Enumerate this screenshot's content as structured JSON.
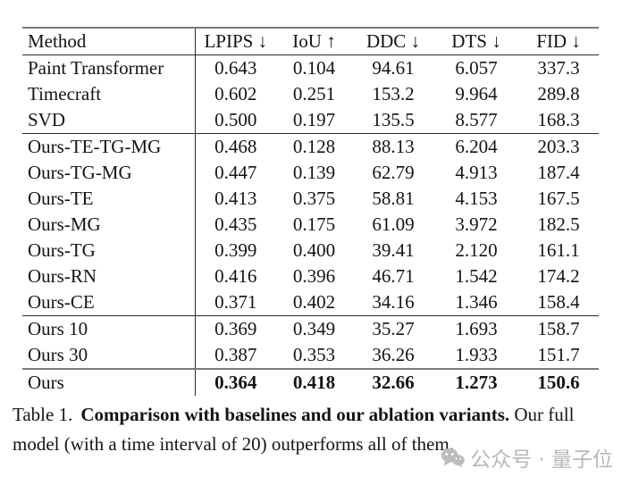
{
  "table": {
    "columns": [
      {
        "label": "Method",
        "arrow": ""
      },
      {
        "label": "LPIPS",
        "arrow": "↓"
      },
      {
        "label": "IoU",
        "arrow": "↑"
      },
      {
        "label": "DDC",
        "arrow": "↓"
      },
      {
        "label": "DTS",
        "arrow": "↓"
      },
      {
        "label": "FID",
        "arrow": "↓"
      }
    ],
    "groups": [
      {
        "name": "baselines",
        "rule": "none",
        "rows": [
          {
            "method": "Paint Transformer",
            "values": [
              "0.643",
              "0.104",
              "94.61",
              "6.057",
              "337.3"
            ],
            "bold": false
          },
          {
            "method": "Timecraft",
            "values": [
              "0.602",
              "0.251",
              "153.2",
              "9.964",
              "289.8"
            ],
            "bold": false
          },
          {
            "method": "SVD",
            "values": [
              "0.500",
              "0.197",
              "135.5",
              "8.577",
              "168.3"
            ],
            "bold": false
          }
        ]
      },
      {
        "name": "ablations",
        "rule": "thin",
        "rows": [
          {
            "method": "Ours-TE-TG-MG",
            "values": [
              "0.468",
              "0.128",
              "88.13",
              "6.204",
              "203.3"
            ],
            "bold": false
          },
          {
            "method": "Ours-TG-MG",
            "values": [
              "0.447",
              "0.139",
              "62.79",
              "4.913",
              "187.4"
            ],
            "bold": false
          },
          {
            "method": "Ours-TE",
            "values": [
              "0.413",
              "0.375",
              "58.81",
              "4.153",
              "167.5"
            ],
            "bold": false
          },
          {
            "method": "Ours-MG",
            "values": [
              "0.435",
              "0.175",
              "61.09",
              "3.972",
              "182.5"
            ],
            "bold": false
          },
          {
            "method": "Ours-TG",
            "values": [
              "0.399",
              "0.400",
              "39.41",
              "2.120",
              "161.1"
            ],
            "bold": false
          },
          {
            "method": "Ours-RN",
            "values": [
              "0.416",
              "0.396",
              "46.71",
              "1.542",
              "174.2"
            ],
            "bold": false
          },
          {
            "method": "Ours-CE",
            "values": [
              "0.371",
              "0.402",
              "34.16",
              "1.346",
              "158.4"
            ],
            "bold": false
          }
        ]
      },
      {
        "name": "time-intervals",
        "rule": "thin",
        "rows": [
          {
            "method": "Ours 10",
            "values": [
              "0.369",
              "0.349",
              "35.27",
              "1.693",
              "158.7"
            ],
            "bold": false
          },
          {
            "method": "Ours 30",
            "values": [
              "0.387",
              "0.353",
              "36.26",
              "1.933",
              "151.7"
            ],
            "bold": false
          }
        ]
      },
      {
        "name": "full-model",
        "rule": "thick",
        "rows": [
          {
            "method": "Ours",
            "values": [
              "0.364",
              "0.418",
              "32.66",
              "1.273",
              "150.6"
            ],
            "bold": true
          }
        ]
      }
    ]
  },
  "caption": {
    "label": "Table 1.",
    "bold": "Comparison with baselines and our ablation variants.",
    "rest": " Our full model (with a time interval of 20) outperforms all of them."
  },
  "watermark": {
    "icon": "wechat-icon",
    "text": "公众号 · 量子位",
    "color": "#b8b8b8"
  }
}
